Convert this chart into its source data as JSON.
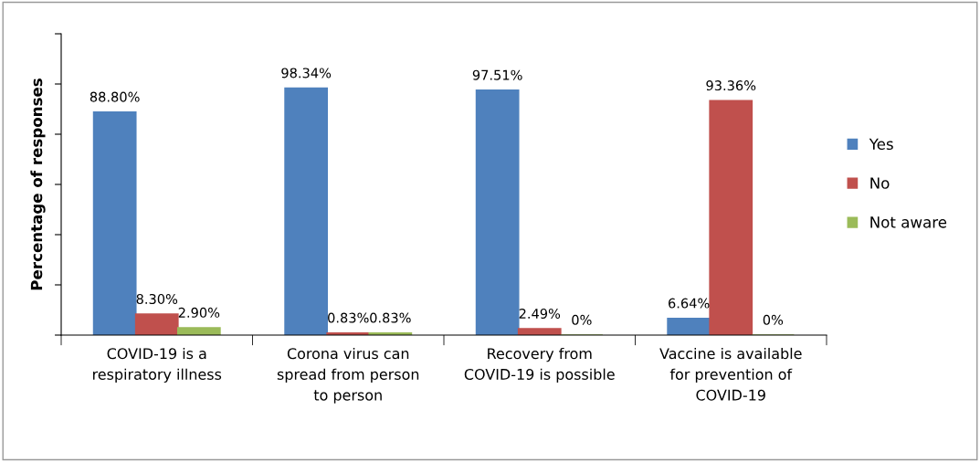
{
  "chart_data": {
    "type": "bar",
    "ylabel": "Percentage of responses",
    "categories": [
      "COVID-19 is a\nrespiratory illness",
      "Corona virus can\nspread from person\nto person",
      "Recovery from\nCOVID-19 is possible",
      "Vaccine is available\nfor prevention of\nCOVID-19"
    ],
    "series": [
      {
        "name": "Yes",
        "color": "#4f81bd",
        "values": [
          88.8,
          98.34,
          97.51,
          6.64
        ],
        "value_labels": [
          "88.80%",
          "98.34%",
          "97.51%",
          "6.64%"
        ]
      },
      {
        "name": "No",
        "color": "#c0504d",
        "values": [
          8.3,
          0.83,
          2.49,
          93.36
        ],
        "value_labels": [
          "8.30%",
          "0.83%",
          "2.49%",
          "93.36%"
        ]
      },
      {
        "name": "Not aware",
        "color": "#9bbb59",
        "values": [
          2.9,
          0.83,
          0,
          0
        ],
        "value_labels": [
          "2.90%",
          "0.83%",
          "0%",
          "0%"
        ]
      }
    ],
    "ylim": [
      0,
      120
    ],
    "yticks": [
      {
        "value": 0,
        "label": null
      },
      {
        "value": 20,
        "label": null
      },
      {
        "value": 40,
        "label": null
      },
      {
        "value": 60,
        "label": null
      },
      {
        "value": 80,
        "label": null
      },
      {
        "value": 100,
        "label": null
      },
      {
        "value": 120,
        "label": null
      }
    ],
    "grid": false,
    "legend": "right",
    "tick_labels": "x"
  }
}
